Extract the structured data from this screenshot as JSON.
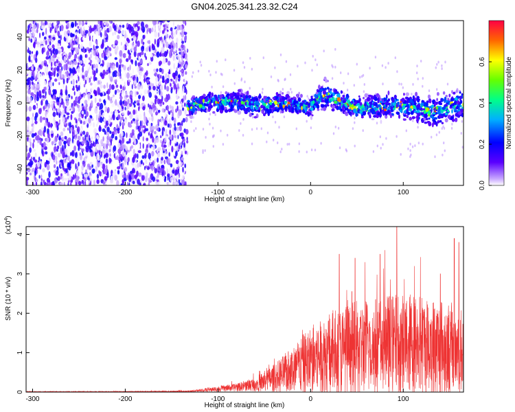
{
  "title": "GN04.2025.341.23.32.C24",
  "chart_data": [
    {
      "type": "heatmap",
      "xlabel": "Height of straight line (km)",
      "ylabel": "Frequency (Hz)",
      "xlim": [
        -307,
        165
      ],
      "ylim": [
        -50,
        50
      ],
      "x_ticks": [
        -300,
        -200,
        -100,
        0,
        100
      ],
      "x_tick_labels": [
        "-300",
        "-200",
        "-100",
        "0",
        "100"
      ],
      "y_ticks": [
        40,
        20,
        0,
        -20,
        -40
      ],
      "y_tick_labels": [
        "40",
        "20",
        "0",
        "-20",
        "-40"
      ],
      "noise_region_x": [
        -307,
        -133
      ],
      "signal_band": {
        "x": [
          -133,
          -110,
          -80,
          -55,
          -30,
          0,
          10,
          15,
          30,
          50,
          75,
          100,
          130,
          140,
          165
        ],
        "center_hz": [
          -2,
          0,
          1,
          -2,
          0,
          -2,
          3,
          5,
          2,
          -3,
          -2,
          -2,
          -5,
          -4,
          0
        ],
        "halfwidth_hz": [
          8,
          8,
          9,
          10,
          8,
          8,
          10,
          12,
          10,
          10,
          10,
          11,
          12,
          14,
          12
        ]
      },
      "colorbar": {
        "label": "Normalized spectral amplitude",
        "range": [
          0,
          0.8
        ],
        "ticks": [
          0,
          0.2,
          0.4,
          0.6
        ],
        "tick_labels": [
          "0.0",
          "0.2",
          "0.4",
          "0.6"
        ]
      },
      "grid": false
    },
    {
      "type": "line",
      "xlabel": "Height of straight line (km)",
      "ylabel": "SNR (10 * v/v)",
      "multiplier_label": "(x10",
      "multiplier_exponent": "4",
      "xlim": [
        -307,
        165
      ],
      "ylim": [
        0,
        4.2
      ],
      "x_ticks": [
        -300,
        -200,
        -100,
        0,
        100
      ],
      "x_tick_labels": [
        "-300",
        "-200",
        "-100",
        "0",
        "100"
      ],
      "y_ticks": [
        0,
        1,
        2,
        3,
        4
      ],
      "y_tick_labels": [
        "0",
        "1",
        "2",
        "3",
        "4"
      ],
      "line_color": "#ee3333",
      "envelope": {
        "x": [
          -307,
          -200,
          -130,
          -110,
          -80,
          -60,
          -40,
          -20,
          0,
          20,
          40,
          60,
          80,
          95,
          110,
          130,
          150,
          165
        ],
        "mean": [
          0.01,
          0.01,
          0.02,
          0.06,
          0.12,
          0.2,
          0.35,
          0.55,
          0.8,
          0.95,
          1.05,
          1.15,
          1.2,
          1.2,
          1.25,
          1.15,
          1.1,
          1.05
        ],
        "spread": [
          0.01,
          0.01,
          0.02,
          0.05,
          0.1,
          0.18,
          0.35,
          0.6,
          0.9,
          1.1,
          1.2,
          1.25,
          1.3,
          1.3,
          1.3,
          1.3,
          1.2,
          1.1
        ]
      },
      "peaks": [
        {
          "x": 31,
          "y": 3.5
        },
        {
          "x": 48,
          "y": 3.4
        },
        {
          "x": 75,
          "y": 3.5
        },
        {
          "x": 93,
          "y": 4.2
        },
        {
          "x": 140,
          "y": 3.0
        },
        {
          "x": 155,
          "y": 3.9
        },
        {
          "x": 160,
          "y": 3.8
        }
      ],
      "grid": false
    }
  ]
}
